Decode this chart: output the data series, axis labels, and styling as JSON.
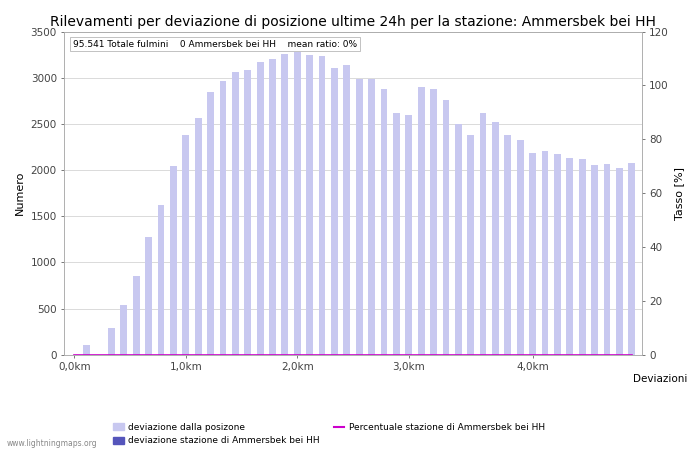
{
  "title": "Rilevamenti per deviazione di posizione ultime 24h per la stazione: Ammersbek bei HH",
  "subtitle": "95.541 Totale fulmini    0 Ammersbek bei HH    mean ratio: 0%",
  "xlabel": "Deviazioni",
  "ylabel_left": "Numero",
  "ylabel_right": "Tasso [%]",
  "background_color": "#ffffff",
  "bar_color_light": "#c8c8f0",
  "bar_color_dark": "#5555bb",
  "line_color": "#cc00cc",
  "ylim_left": [
    0,
    3500
  ],
  "ylim_right": [
    0,
    120
  ],
  "xtick_labels": [
    "0,0km",
    "1,0km",
    "2,0km",
    "3,0km",
    "4,0km"
  ],
  "xtick_positions": [
    0,
    9,
    18,
    27,
    37
  ],
  "ytick_left": [
    0,
    500,
    1000,
    1500,
    2000,
    2500,
    3000,
    3500
  ],
  "ytick_right": [
    0,
    20,
    40,
    60,
    80,
    100,
    120
  ],
  "bar_values": [
    0,
    105,
    0,
    285,
    540,
    855,
    1270,
    1620,
    2040,
    2380,
    2560,
    2840,
    2960,
    3060,
    3080,
    3170,
    3200,
    3260,
    3280,
    3250,
    3230,
    3105,
    3135,
    2990,
    2990,
    2880,
    2620,
    2600,
    2900,
    2880,
    2760,
    2500,
    2380,
    2620,
    2520,
    2380,
    2330,
    2180,
    2210,
    2170,
    2130,
    2120,
    2060,
    2070,
    2020,
    2080
  ],
  "station_bar_values": [
    0,
    0,
    0,
    0,
    0,
    0,
    0,
    0,
    0,
    0,
    0,
    0,
    0,
    0,
    0,
    0,
    0,
    0,
    0,
    0,
    0,
    0,
    0,
    0,
    0,
    0,
    0,
    0,
    0,
    0,
    0,
    0,
    0,
    0,
    0,
    0,
    0,
    0,
    0,
    0,
    0,
    0,
    0,
    0,
    0,
    0
  ],
  "ratio_values": [
    0,
    0,
    0,
    0,
    0,
    0,
    0,
    0,
    0,
    0,
    0,
    0,
    0,
    0,
    0,
    0,
    0,
    0,
    0,
    0,
    0,
    0,
    0,
    0,
    0,
    0,
    0,
    0,
    0,
    0,
    0,
    0,
    0,
    0,
    0,
    0,
    0,
    0,
    0,
    0,
    0,
    0,
    0,
    0,
    0,
    0
  ],
  "legend_label_light": "deviazione dalla posizone",
  "legend_label_dark": "deviazione stazione di Ammersbek bei HH",
  "legend_label_line": "Percentuale stazione di Ammersbek bei HH",
  "watermark": "www.lightningmaps.org",
  "grid_color": "#cccccc",
  "title_fontsize": 10,
  "label_fontsize": 8,
  "tick_fontsize": 7.5
}
